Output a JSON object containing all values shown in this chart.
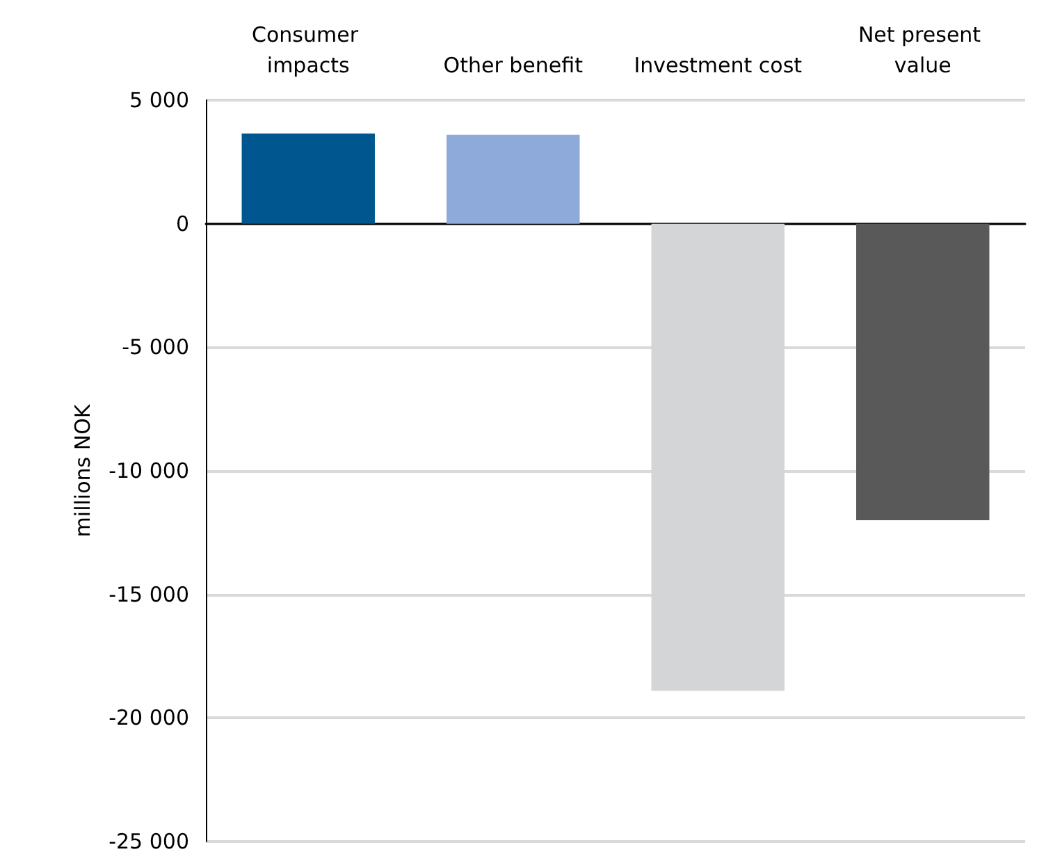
{
  "chart_data": {
    "type": "bar",
    "ylabel": "millions NOK",
    "categories": [
      "Consumer impacts",
      "Other benefit",
      "Investment cost",
      "Net present value"
    ],
    "values": [
      3650,
      3600,
      -18900,
      -12000
    ],
    "colors": [
      "#00568f",
      "#8eaadb",
      "#d4d5d7",
      "#595959"
    ],
    "ylim": [
      -25000,
      5000
    ],
    "yticks": [
      {
        "value": -25000,
        "label": "-25 000"
      },
      {
        "value": -20000,
        "label": "-20 000"
      },
      {
        "value": -15000,
        "label": "-15 000"
      },
      {
        "value": -10000,
        "label": "-10 000"
      },
      {
        "value": -5000,
        "label": "-5 000"
      },
      {
        "value": 0,
        "label": "0"
      },
      {
        "value": 5000,
        "label": "5 000"
      }
    ],
    "grid": "y"
  }
}
